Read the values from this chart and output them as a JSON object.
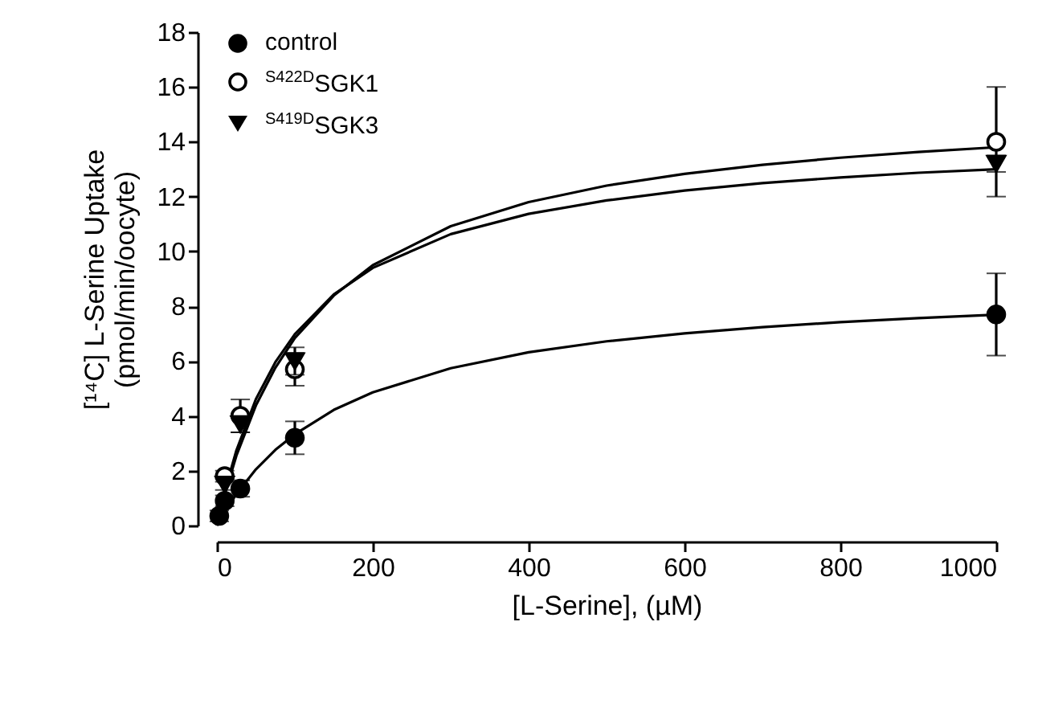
{
  "chart_data": {
    "type": "scatter",
    "xlabel": "[L-Serine], (µM)",
    "ylabel": "[¹⁴C] L-Serine Uptake\n(pmol/min/oocyte)",
    "xlim": [
      0,
      1000
    ],
    "xticks": [
      0,
      200,
      400,
      600,
      800,
      1000
    ],
    "ylim": [
      0,
      18
    ],
    "yticks": [
      0,
      2,
      4,
      6,
      8,
      10,
      12,
      14,
      16,
      18
    ],
    "grid": false,
    "legend": "top left",
    "x": [
      3,
      10,
      30,
      100,
      1000
    ],
    "series": [
      {
        "name": "control",
        "color": "#000000",
        "marker": "circle",
        "values": [
          0.35,
          0.9,
          1.35,
          3.2,
          7.7
        ],
        "errors": [
          0.2,
          0.2,
          0.3,
          0.6,
          1.5
        ]
      },
      {
        "name": "$^{S422D}$SGK1",
        "color": "#000000",
        "marker": "circle",
        "values": [
          null,
          1.8,
          4.0,
          5.7,
          14.0
        ],
        "errors": [
          null,
          0.2,
          0.6,
          0.6,
          2.0
        ]
      },
      {
        "name": "$^{S419D}$SGK3",
        "color": "#000000",
        "marker": "triangle",
        "values": [
          null,
          1.5,
          3.7,
          6.0,
          13.2
        ],
        "errors": [
          null,
          0.2,
          0.3,
          0.5,
          0.3
        ]
      },
      {
        "type": "line",
        "color": "#000000",
        "x": [
          0,
          10,
          25,
          50,
          75,
          100,
          150,
          200,
          300,
          400,
          500,
          600,
          700,
          800,
          900,
          1000
        ],
        "values": [
          0,
          0.5,
          1.15,
          2.05,
          2.76,
          3.33,
          4.22,
          4.86,
          5.74,
          6.32,
          6.72,
          7.01,
          7.24,
          7.42,
          7.57,
          7.69
        ]
      },
      {
        "type": "line",
        "color": "#000000",
        "x": [
          0,
          10,
          25,
          50,
          75,
          100,
          150,
          200,
          300,
          400,
          500,
          600,
          700,
          800,
          900,
          1000
        ],
        "values": [
          0,
          1.13,
          2.55,
          4.38,
          5.76,
          6.84,
          8.39,
          9.5,
          10.92,
          11.8,
          12.4,
          12.83,
          13.16,
          13.42,
          13.63,
          13.8
        ]
      },
      {
        "type": "line",
        "color": "#000000",
        "x": [
          0,
          10,
          25,
          50,
          75,
          100,
          150,
          200,
          300,
          400,
          500,
          600,
          700,
          800,
          900,
          1000
        ],
        "values": [
          0,
          1.24,
          2.74,
          4.61,
          5.96,
          6.98,
          8.43,
          9.4,
          10.63,
          11.37,
          11.86,
          12.22,
          12.49,
          12.7,
          12.87,
          13.0
        ]
      }
    ]
  }
}
